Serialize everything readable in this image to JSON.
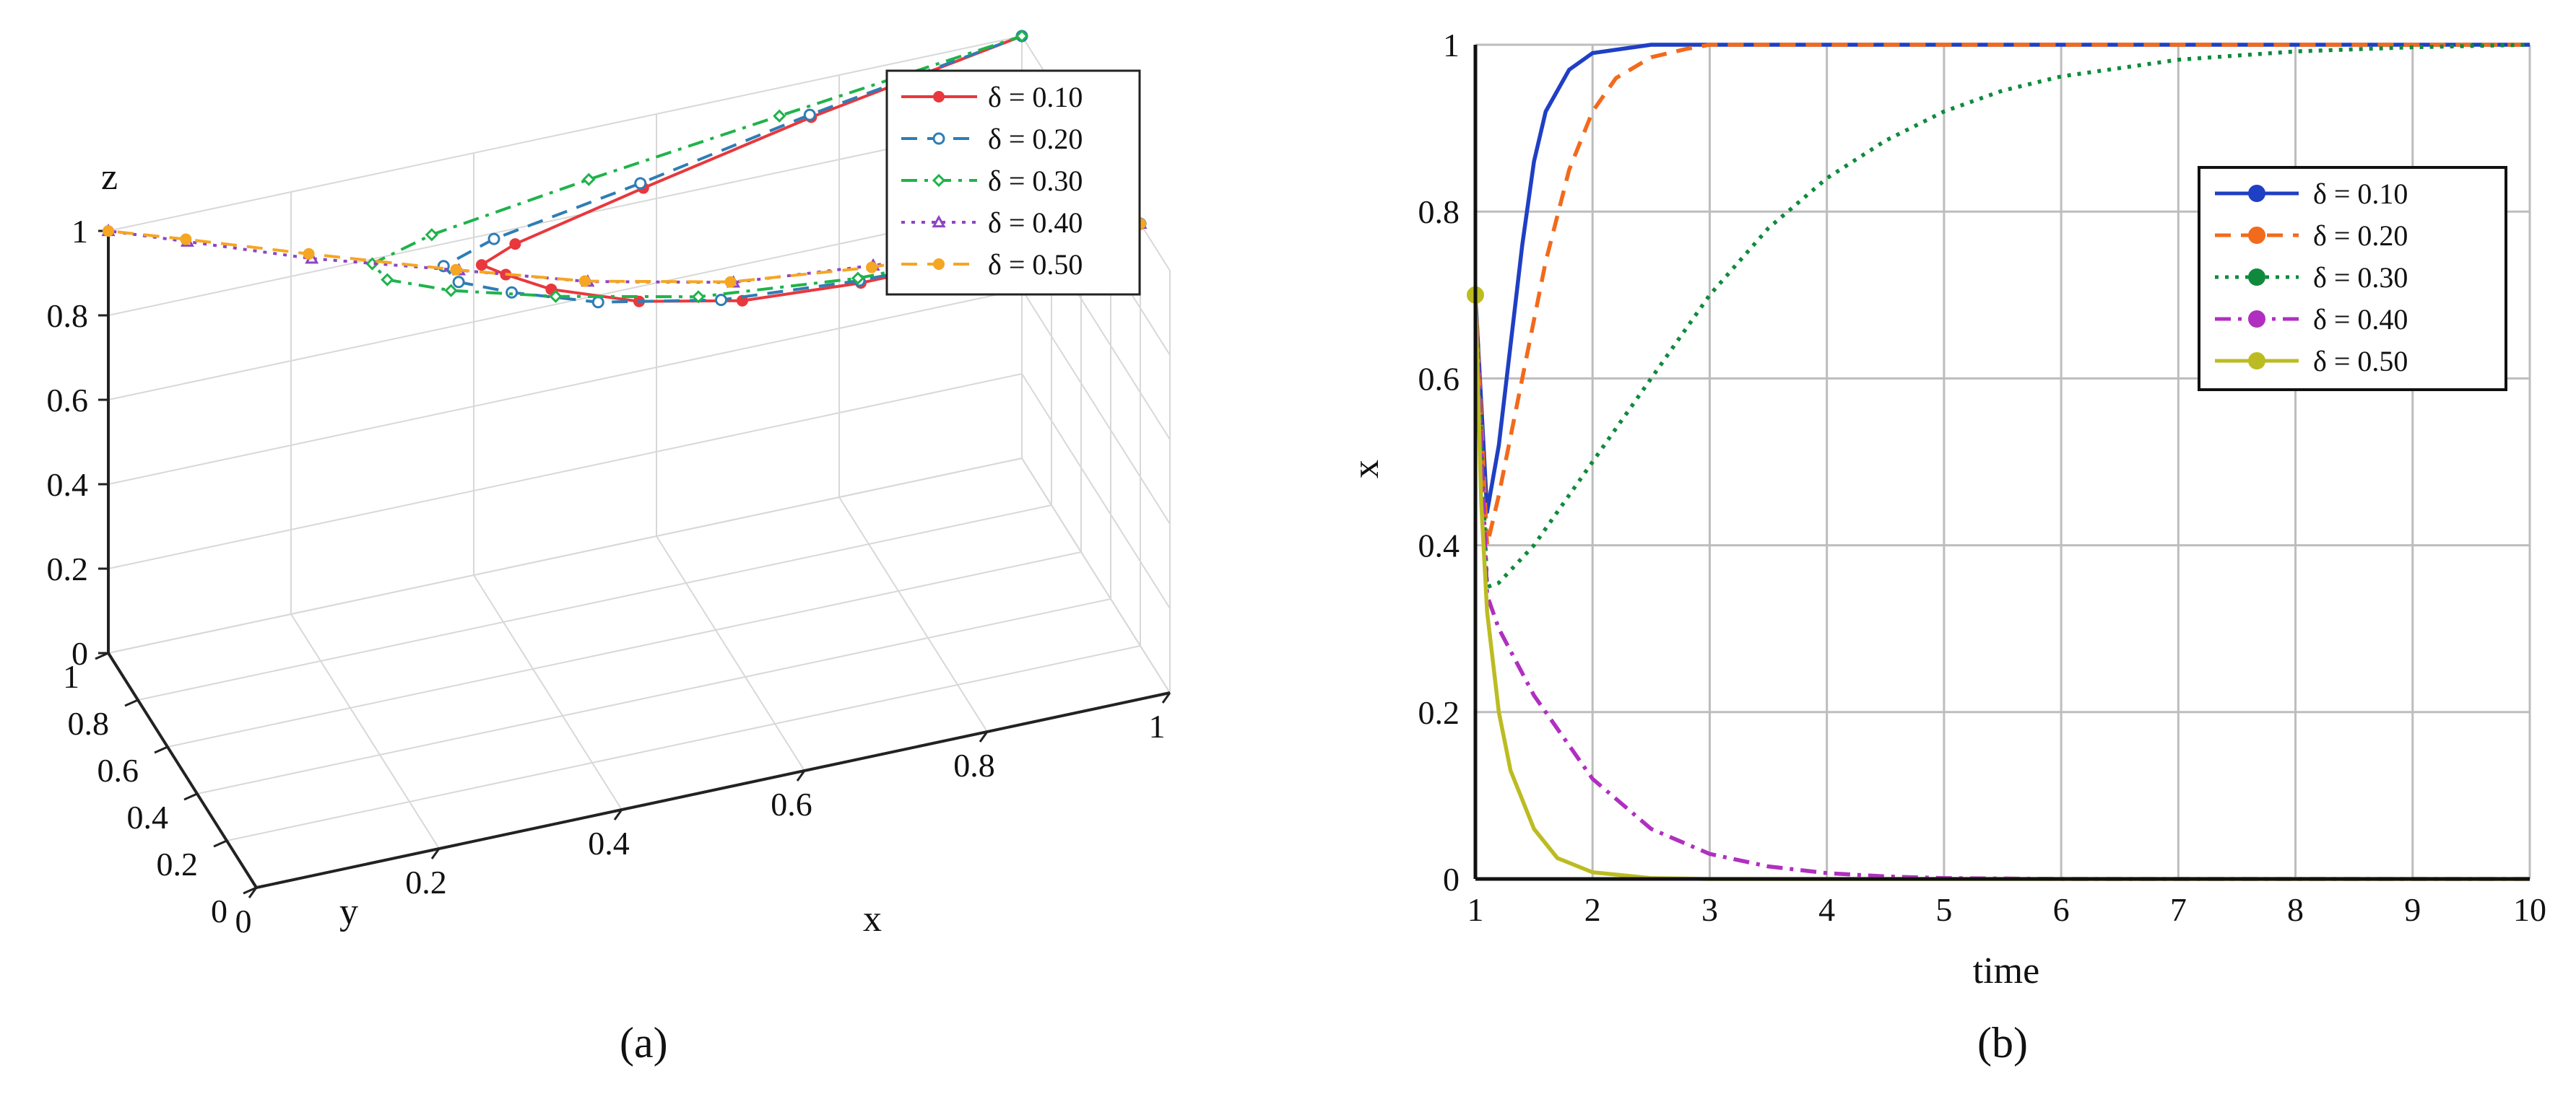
{
  "chart_data": [
    {
      "type": "line3d",
      "caption": "(a)",
      "xlabel": "x",
      "ylabel": "y",
      "zlabel": "z",
      "xlim": [
        0,
        1
      ],
      "ylim": [
        0,
        1
      ],
      "zlim": [
        0,
        1
      ],
      "xticks": [
        "0",
        "0.2",
        "0.4",
        "0.6",
        "0.8",
        "1"
      ],
      "yticks": [
        "0",
        "0.2",
        "0.4",
        "0.6",
        "0.8",
        "1"
      ],
      "zticks": [
        "0",
        "0.2",
        "0.4",
        "0.6",
        "0.8",
        "1"
      ],
      "grid": true,
      "legend_position": "top-right",
      "series": [
        {
          "name": "δ = 0.10",
          "color": "#e8383d",
          "marker": "circle-filled",
          "dash": "solid",
          "points": [
            [
              1.0,
              0.2,
              1.0
            ],
            [
              0.95,
              0.25,
              0.98
            ],
            [
              0.85,
              0.3,
              0.94
            ],
            [
              0.72,
              0.36,
              0.9
            ],
            [
              0.6,
              0.42,
              0.88
            ],
            [
              0.5,
              0.5,
              0.88
            ],
            [
              0.42,
              0.6,
              0.89
            ],
            [
              0.38,
              0.66,
              0.91
            ],
            [
              0.36,
              0.7,
              0.92
            ],
            [
              0.4,
              0.72,
              0.94
            ],
            [
              0.55,
              0.78,
              0.97
            ],
            [
              0.75,
              0.88,
              0.99
            ],
            [
              1.0,
              1.0,
              1.0
            ]
          ]
        },
        {
          "name": "δ = 0.20",
          "color": "#2e7db5",
          "marker": "circle-open",
          "dash": "dash",
          "points": [
            [
              1.0,
              0.2,
              1.0
            ],
            [
              0.95,
              0.25,
              0.98
            ],
            [
              0.85,
              0.3,
              0.94
            ],
            [
              0.72,
              0.37,
              0.9
            ],
            [
              0.58,
              0.44,
              0.88
            ],
            [
              0.46,
              0.53,
              0.88
            ],
            [
              0.38,
              0.62,
              0.89
            ],
            [
              0.33,
              0.67,
              0.91
            ],
            [
              0.32,
              0.71,
              0.93
            ],
            [
              0.38,
              0.74,
              0.95
            ],
            [
              0.55,
              0.8,
              0.97
            ],
            [
              0.75,
              0.89,
              0.99
            ],
            [
              1.0,
              1.0,
              1.0
            ]
          ]
        },
        {
          "name": "δ = 0.30",
          "color": "#1fb34a",
          "marker": "diamond-open",
          "dash": "dashdot",
          "points": [
            [
              1.0,
              0.2,
              1.0
            ],
            [
              0.95,
              0.25,
              0.98
            ],
            [
              0.85,
              0.31,
              0.94
            ],
            [
              0.72,
              0.38,
              0.9
            ],
            [
              0.56,
              0.47,
              0.88
            ],
            [
              0.42,
              0.57,
              0.89
            ],
            [
              0.32,
              0.66,
              0.9
            ],
            [
              0.26,
              0.72,
              0.92
            ],
            [
              0.25,
              0.76,
              0.94
            ],
            [
              0.32,
              0.79,
              0.96
            ],
            [
              0.5,
              0.84,
              0.98
            ],
            [
              0.72,
              0.91,
              0.99
            ],
            [
              1.0,
              1.0,
              1.0
            ]
          ]
        },
        {
          "name": "δ = 0.40",
          "color": "#8e44c4",
          "marker": "triangle-open",
          "dash": "dot",
          "points": [
            [
              1.0,
              0.2,
              1.0
            ],
            [
              0.95,
              0.26,
              0.98
            ],
            [
              0.86,
              0.32,
              0.94
            ],
            [
              0.74,
              0.4,
              0.91
            ],
            [
              0.6,
              0.48,
              0.89
            ],
            [
              0.46,
              0.6,
              0.89
            ],
            [
              0.34,
              0.73,
              0.9
            ],
            [
              0.2,
              0.86,
              0.92
            ],
            [
              0.08,
              0.96,
              0.96
            ],
            [
              0.0,
              1.0,
              1.0
            ]
          ]
        },
        {
          "name": "δ = 0.50",
          "color": "#f5a623",
          "marker": "circle-filled",
          "dash": "dash",
          "points": [
            [
              1.0,
              0.2,
              1.0
            ],
            [
              0.95,
              0.26,
              0.98
            ],
            [
              0.86,
              0.33,
              0.94
            ],
            [
              0.74,
              0.41,
              0.9
            ],
            [
              0.6,
              0.5,
              0.88
            ],
            [
              0.46,
              0.62,
              0.88
            ],
            [
              0.34,
              0.75,
              0.89
            ],
            [
              0.2,
              0.88,
              0.92
            ],
            [
              0.08,
              0.97,
              0.96
            ],
            [
              0.0,
              1.0,
              1.0
            ]
          ]
        }
      ]
    },
    {
      "type": "line",
      "caption": "(b)",
      "xlabel": "time",
      "ylabel": "x",
      "xlim": [
        1,
        10
      ],
      "ylim": [
        0,
        1
      ],
      "xticks": [
        "1",
        "2",
        "3",
        "4",
        "5",
        "6",
        "7",
        "8",
        "9",
        "10"
      ],
      "yticks": [
        "0",
        "0.2",
        "0.4",
        "0.6",
        "0.8",
        "1"
      ],
      "grid": true,
      "legend_position": "right",
      "series": [
        {
          "name": "δ = 0.10",
          "color": "#1f3fc4",
          "dash": "solid",
          "x": [
            1.0,
            1.1,
            1.2,
            1.3,
            1.4,
            1.5,
            1.6,
            1.8,
            2.0,
            2.5,
            3,
            4,
            5,
            6,
            7,
            8,
            9,
            10
          ],
          "y": [
            0.7,
            0.44,
            0.52,
            0.64,
            0.76,
            0.86,
            0.92,
            0.97,
            0.99,
            1.0,
            1.0,
            1.0,
            1.0,
            1.0,
            1.0,
            1.0,
            1.0,
            1.0
          ]
        },
        {
          "name": "δ = 0.20",
          "color": "#f26a1b",
          "dash": "dash",
          "x": [
            1.0,
            1.1,
            1.2,
            1.4,
            1.6,
            1.8,
            2.0,
            2.2,
            2.5,
            2.8,
            3.0,
            4,
            5,
            6,
            7,
            8,
            9,
            10
          ],
          "y": [
            0.7,
            0.4,
            0.46,
            0.6,
            0.74,
            0.85,
            0.92,
            0.96,
            0.985,
            0.995,
            1.0,
            1.0,
            1.0,
            1.0,
            1.0,
            1.0,
            1.0,
            1.0
          ]
        },
        {
          "name": "δ = 0.30",
          "color": "#0f8a3c",
          "dash": "dot",
          "x": [
            1.0,
            1.1,
            1.2,
            1.5,
            2.0,
            2.5,
            3.0,
            3.5,
            4.0,
            4.5,
            5.0,
            5.5,
            6.0,
            7.0,
            8.0,
            9.0,
            10.0
          ],
          "y": [
            0.7,
            0.35,
            0.355,
            0.4,
            0.5,
            0.6,
            0.7,
            0.78,
            0.84,
            0.885,
            0.92,
            0.945,
            0.962,
            0.982,
            0.992,
            0.997,
            1.0
          ]
        },
        {
          "name": "δ = 0.40",
          "color": "#b02fc0",
          "dash": "dashdot",
          "x": [
            1.0,
            1.1,
            1.2,
            1.5,
            2.0,
            2.5,
            3.0,
            3.5,
            4.0,
            4.5,
            5.0,
            6.0,
            7.0,
            8.0,
            9.0,
            10.0
          ],
          "y": [
            0.7,
            0.34,
            0.3,
            0.22,
            0.12,
            0.06,
            0.03,
            0.015,
            0.007,
            0.003,
            0.001,
            0,
            0,
            0,
            0,
            0
          ]
        },
        {
          "name": "δ = 0.50",
          "color": "#bcbc22",
          "dash": "solid",
          "x": [
            1.0,
            1.05,
            1.1,
            1.2,
            1.3,
            1.5,
            1.7,
            2.0,
            2.5,
            3.0,
            4.0,
            5,
            6,
            7,
            8,
            9,
            10
          ],
          "y": [
            0.7,
            0.45,
            0.32,
            0.2,
            0.13,
            0.06,
            0.025,
            0.008,
            0.001,
            0,
            0,
            0,
            0,
            0,
            0,
            0,
            0
          ]
        }
      ]
    }
  ]
}
